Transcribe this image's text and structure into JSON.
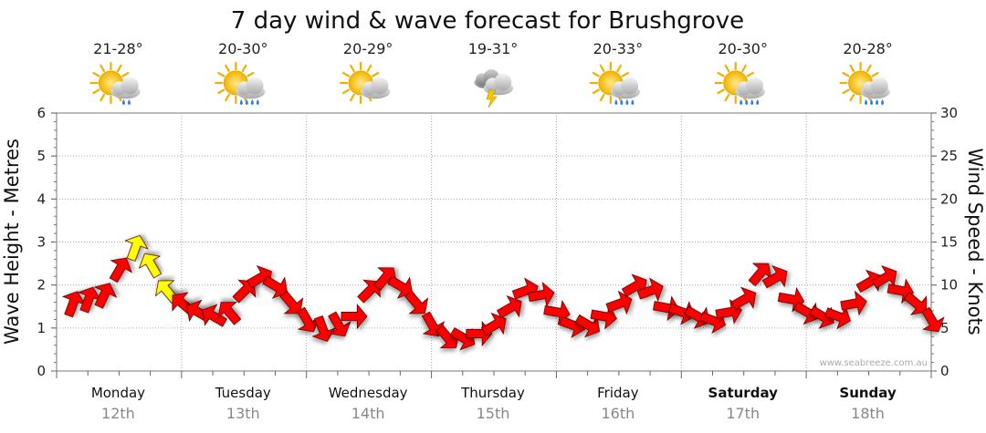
{
  "chart_data": {
    "type": "line",
    "title": "7 day wind & wave forecast for Brushgrove",
    "ylabel_left": "Wave Height - Metres",
    "ylabel_right": "Wind Speed - Knots",
    "ylim_left": [
      0,
      6
    ],
    "ylim_right": [
      0,
      30
    ],
    "yticks_left": [
      "0",
      "1",
      "2",
      "3",
      "4",
      "5",
      "6"
    ],
    "yticks_right": [
      "0",
      "5",
      "10",
      "15",
      "20",
      "25",
      "30"
    ],
    "grid": true,
    "days": [
      {
        "name": "Monday",
        "date": "12th",
        "temp": "21-28°",
        "icon": "sun-cloud-showers-icon",
        "bold": false
      },
      {
        "name": "Tuesday",
        "date": "13th",
        "temp": "20-30°",
        "icon": "sun-cloud-rain-icon",
        "bold": false
      },
      {
        "name": "Wednesday",
        "date": "14th",
        "temp": "20-29°",
        "icon": "sun-cloud-icon",
        "bold": false
      },
      {
        "name": "Thursday",
        "date": "15th",
        "temp": "19-31°",
        "icon": "thunderstorm-icon",
        "bold": false
      },
      {
        "name": "Friday",
        "date": "16th",
        "temp": "20-33°",
        "icon": "sun-cloud-rain-icon",
        "bold": false
      },
      {
        "name": "Saturday",
        "date": "17th",
        "temp": "20-30°",
        "icon": "sun-cloud-rain-icon",
        "bold": true
      },
      {
        "name": "Sunday",
        "date": "18th",
        "temp": "20-28°",
        "icon": "sun-cloud-rain-icon",
        "bold": true
      }
    ],
    "series": [
      {
        "name": "",
        "unit": "knots",
        "x_hours": [
          0,
          3,
          6,
          9,
          12,
          15,
          18,
          21,
          24,
          27,
          30,
          33,
          36,
          39,
          42,
          45,
          48,
          51,
          54,
          57,
          60,
          63,
          66,
          69,
          72,
          75,
          78,
          81,
          84,
          87,
          90,
          93,
          96,
          99,
          102,
          105,
          108,
          111,
          114,
          117,
          120,
          123,
          126,
          129,
          132,
          135,
          138,
          141,
          144,
          147,
          150,
          153,
          156,
          159,
          162,
          165
        ],
        "speed": [
          7,
          7.5,
          8,
          11,
          13.5,
          11.5,
          8.5,
          7,
          6,
          5.5,
          6,
          8.5,
          10,
          9,
          7,
          5,
          4,
          4.5,
          5.5,
          8.5,
          10,
          9,
          7,
          4.5,
          3,
          3,
          3.5,
          4.5,
          6.5,
          8.5,
          8,
          6,
          4.5,
          4.5,
          5.5,
          7,
          9,
          8.5,
          6.5,
          6,
          5.5,
          5,
          6,
          7.5,
          10.5,
          10,
          7.5,
          6,
          5.5,
          5.5,
          7,
          9.5,
          10,
          8.5,
          7,
          5
        ],
        "direction_deg": [
          20,
          20,
          25,
          30,
          20,
          330,
          320,
          310,
          300,
          300,
          320,
          45,
          60,
          120,
          140,
          150,
          160,
          150,
          90,
          45,
          40,
          120,
          140,
          150,
          140,
          120,
          90,
          60,
          60,
          70,
          80,
          100,
          110,
          120,
          100,
          70,
          60,
          70,
          100,
          110,
          120,
          110,
          80,
          60,
          40,
          60,
          100,
          120,
          120,
          110,
          80,
          60,
          60,
          100,
          130,
          150
        ],
        "gust_flag": [
          false,
          false,
          false,
          false,
          true,
          true,
          true,
          false,
          false,
          false,
          false,
          false,
          false,
          false,
          false,
          false,
          false,
          false,
          false,
          false,
          false,
          false,
          false,
          false,
          false,
          false,
          false,
          false,
          false,
          false,
          false,
          false,
          false,
          false,
          false,
          false,
          false,
          false,
          false,
          false,
          false,
          false,
          false,
          false,
          false,
          false,
          false,
          false,
          false,
          false,
          false,
          false,
          false,
          false,
          false,
          false
        ]
      }
    ]
  },
  "credit": "www.seabreeze.com.au",
  "colors": {
    "arrow": "#ff0000",
    "gust_arrow": "#ffff00",
    "grid": "#aaaaaa",
    "axis": "#555555"
  }
}
